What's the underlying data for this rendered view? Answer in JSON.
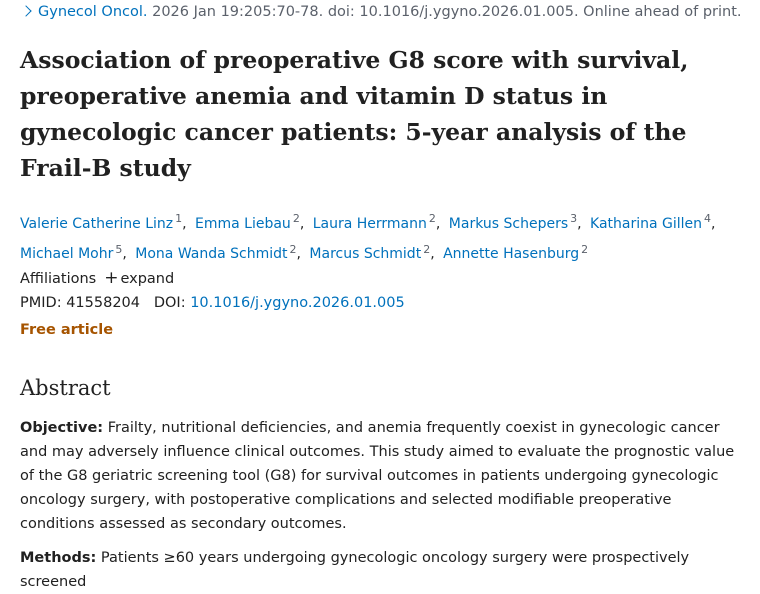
{
  "citation": {
    "journal": "Gynecol Oncol.",
    "details": "2026 Jan 19:205:70-78. doi: 10.1016/j.ygyno.2026.01.005. Online ahead of print."
  },
  "title": "Association of preoperative G8 score with survival, preoperative anemia and vitamin D status in gynecologic cancer patients: 5-year analysis of the Frail-B study",
  "authors": [
    {
      "name": "Valerie Catherine Linz",
      "aff": "1"
    },
    {
      "name": "Emma Liebau",
      "aff": "2"
    },
    {
      "name": "Laura Herrmann",
      "aff": "2"
    },
    {
      "name": "Markus Schepers",
      "aff": "3"
    },
    {
      "name": "Katharina Gillen",
      "aff": "4"
    },
    {
      "name": "Michael Mohr",
      "aff": "5"
    },
    {
      "name": "Mona Wanda Schmidt",
      "aff": "2"
    },
    {
      "name": "Marcus Schmidt",
      "aff": "2"
    },
    {
      "name": "Annette Hasenburg",
      "aff": "2"
    }
  ],
  "affiliations": {
    "label": "Affiliations",
    "toggle": "expand"
  },
  "ids": {
    "pmid_label": "PMID:",
    "pmid": "41558204",
    "doi_label": "DOI:",
    "doi": "10.1016/j.ygyno.2026.01.005"
  },
  "access": "Free article",
  "abstract": {
    "heading": "Abstract",
    "sections": [
      {
        "label": "Objective:",
        "text": "Frailty, nutritional deficiencies, and anemia frequently coexist in gynecologic cancer and may adversely influence clinical outcomes. This study aimed to evaluate the prognostic value of the G8 geriatric screening tool (G8) for survival outcomes in patients undergoing gynecologic oncology surgery, with postoperative complications and selected modifiable preoperative conditions assessed as secondary outcomes."
      },
      {
        "label": "Methods:",
        "text": "Patients ≥60 years undergoing gynecologic oncology surgery were prospectively screened"
      }
    ]
  }
}
